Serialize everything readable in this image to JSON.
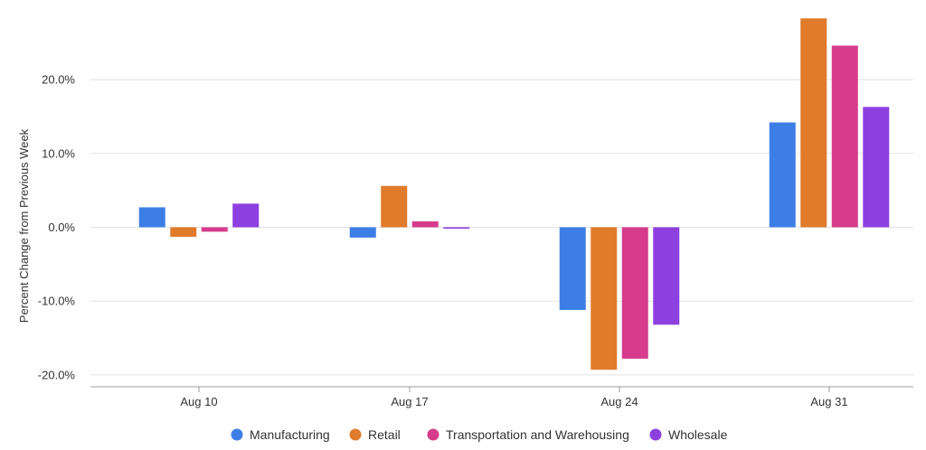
{
  "chart_data": {
    "type": "bar",
    "title": "",
    "xlabel": "",
    "ylabel": "Percent Change from Previous Week",
    "ylim": [
      -22,
      28
    ],
    "yticks": [
      -20,
      -10,
      0,
      10,
      20
    ],
    "ytick_labels": [
      "-20.0%",
      "-10.0%",
      "0.0%",
      "10.0%",
      "20.0%"
    ],
    "grid": true,
    "legend_position": "bottom",
    "categories": [
      "Aug 10",
      "Aug 17",
      "Aug 24",
      "Aug 31"
    ],
    "series": [
      {
        "name": "Manufacturing",
        "color": "#3d7ee6",
        "values": [
          2.7,
          -1.4,
          -11.2,
          14.2
        ]
      },
      {
        "name": "Retail",
        "color": "#e07b2c",
        "values": [
          -1.3,
          5.6,
          -19.3,
          28.3
        ]
      },
      {
        "name": "Transportation and Warehousing",
        "color": "#d63b8c",
        "values": [
          -0.6,
          0.8,
          -17.8,
          24.6
        ]
      },
      {
        "name": "Wholesale",
        "color": "#8e3fe0",
        "values": [
          3.2,
          -0.2,
          -13.2,
          16.3
        ]
      }
    ]
  }
}
